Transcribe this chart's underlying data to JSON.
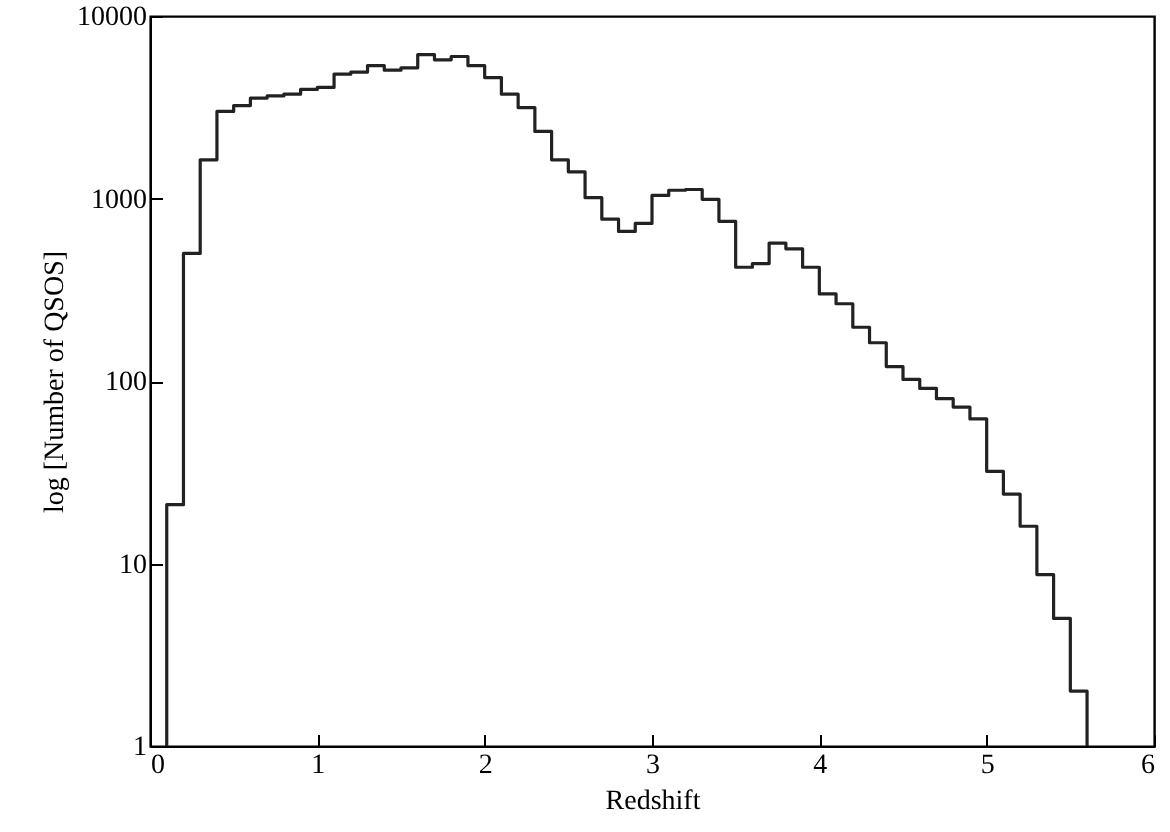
{
  "chart_data": {
    "type": "histogram",
    "xlabel": "Redshift",
    "ylabel": "log [Number of QSOS]",
    "log": "y",
    "grid": false,
    "color": "#222222",
    "bins": [
      0.1,
      0.2,
      0.3,
      0.4,
      0.5,
      0.6,
      0.7,
      0.8,
      0.9,
      1.0,
      1.1,
      1.2,
      1.3,
      1.4,
      1.5,
      1.6,
      1.7,
      1.8,
      1.9,
      2.0,
      2.1,
      2.2,
      2.3,
      2.4,
      2.5,
      2.6,
      2.7,
      2.8,
      2.9,
      3.0,
      3.1,
      3.2,
      3.3,
      3.4,
      3.5,
      3.6,
      3.7,
      3.8,
      3.9,
      4.0,
      4.1,
      4.2,
      4.3,
      4.4,
      4.5,
      4.6,
      4.7,
      4.8,
      4.9,
      5.0,
      5.1,
      5.2,
      5.3,
      5.4,
      5.5,
      5.6
    ],
    "values": [
      21,
      500,
      1630,
      3000,
      3230,
      3550,
      3650,
      3730,
      3960,
      4060,
      4800,
      4930,
      5350,
      5050,
      5200,
      6150,
      5750,
      6000,
      5350,
      4600,
      3730,
      3150,
      2330,
      1630,
      1400,
      1010,
      770,
      660,
      730,
      1040,
      1110,
      1120,
      990,
      750,
      420,
      440,
      570,
      530,
      420,
      300,
      265,
      197,
      162,
      120,
      102,
      91,
      80,
      72,
      62,
      32,
      24,
      16,
      8.7,
      5.0,
      2.0
    ],
    "xlim": [
      0,
      6
    ],
    "xticks": [
      0,
      1,
      2,
      3,
      4,
      5,
      6
    ],
    "ylim": [
      1,
      10000
    ],
    "yticks": [
      1,
      10,
      100,
      1000,
      10000
    ]
  }
}
